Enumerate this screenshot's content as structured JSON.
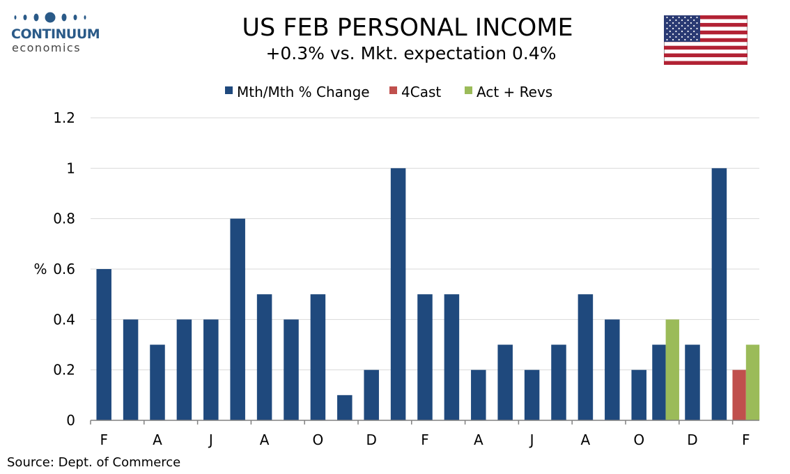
{
  "logo": {
    "name": "CONTINUUM",
    "sub": "economics",
    "color": "#2a5a88"
  },
  "flag": {
    "icon": "us-flag-icon"
  },
  "source": "Source: Dept. of Commerce",
  "colors": {
    "primary": "#1f497d",
    "forecast": "#c0504d",
    "actual": "#9bbb59",
    "grid": "#d9d9d9",
    "axis": "#808080"
  },
  "chart_data": {
    "type": "bar",
    "title": "US FEB PERSONAL INCOME",
    "subtitle": "+0.3% vs. Mkt. expectation 0.4%",
    "ylabel": "%",
    "xlabel": "",
    "ylim": [
      0,
      1.2
    ],
    "yticks": [
      "0",
      "0.2",
      "0.4",
      "0.6",
      "0.8",
      "1",
      "1.2"
    ],
    "grid": true,
    "legend_position": "top",
    "legend": [
      {
        "name": "Mth/Mth % Change",
        "color": "#1f497d"
      },
      {
        "name": "4Cast",
        "color": "#c0504d"
      },
      {
        "name": "Act + Revs",
        "color": "#9bbb59"
      }
    ],
    "categories": [
      "Feb",
      "Mar",
      "Apr",
      "May",
      "Jun",
      "Jul",
      "Aug",
      "Sep",
      "Oct",
      "Nov",
      "Dec",
      "Jan",
      "Feb",
      "Mar",
      "Apr",
      "May",
      "Jun",
      "Jul",
      "Aug",
      "Sep",
      "Oct",
      "Nov",
      "Dec",
      "Jan",
      "Feb"
    ],
    "tick_labels": [
      "F",
      "",
      "A",
      "",
      "J",
      "",
      "A",
      "",
      "O",
      "",
      "D",
      "",
      "F",
      "",
      "A",
      "",
      "J",
      "",
      "A",
      "",
      "O",
      "",
      "D",
      "",
      "F"
    ],
    "series": [
      {
        "name": "Mth/Mth % Change",
        "values": [
          0.6,
          0.4,
          0.3,
          0.4,
          0.4,
          0.8,
          0.5,
          0.4,
          0.5,
          0.1,
          0.2,
          1.0,
          0.5,
          0.5,
          0.2,
          0.3,
          0.2,
          0.3,
          0.5,
          0.4,
          0.2,
          0.3,
          0.3,
          1.0,
          null
        ]
      },
      {
        "name": "4Cast",
        "values": [
          null,
          null,
          null,
          null,
          null,
          null,
          null,
          null,
          null,
          null,
          null,
          null,
          null,
          null,
          null,
          null,
          null,
          null,
          null,
          null,
          null,
          null,
          null,
          null,
          0.2
        ]
      },
      {
        "name": "Act + Revs",
        "values": [
          null,
          null,
          null,
          null,
          null,
          null,
          null,
          null,
          null,
          null,
          null,
          null,
          null,
          null,
          null,
          null,
          null,
          null,
          null,
          null,
          null,
          0.4,
          null,
          null,
          0.3
        ]
      }
    ]
  }
}
